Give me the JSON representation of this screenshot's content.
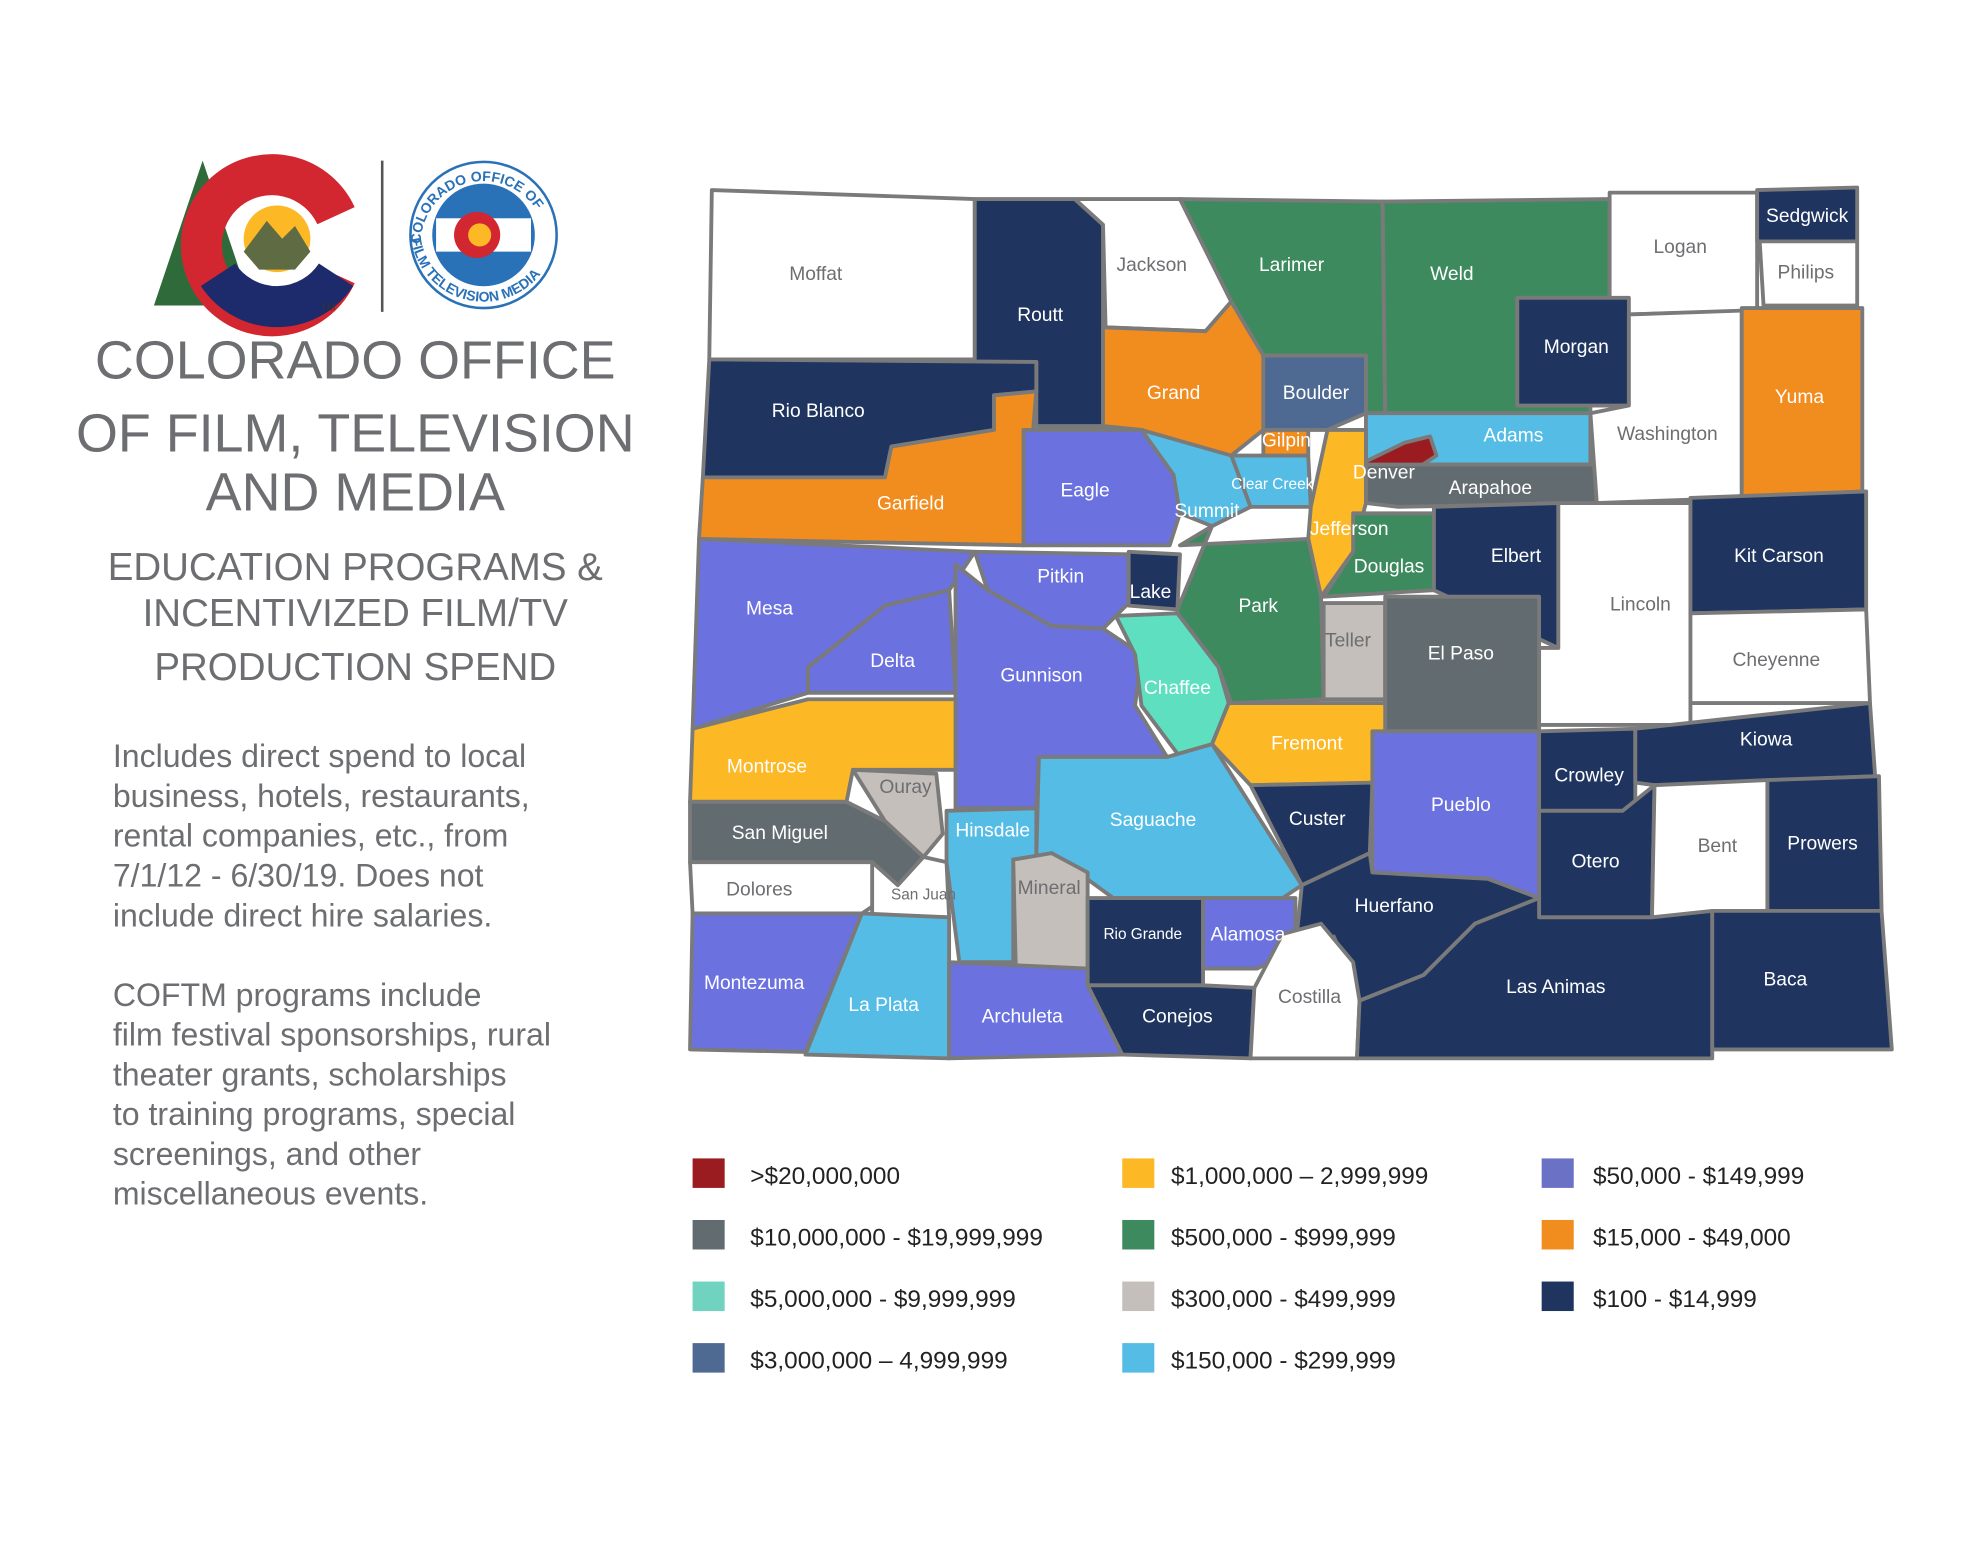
{
  "logo": {
    "badge_top": "COLORADO OFFICE OF",
    "badge_bottom": "FILM TELEVISION MEDIA",
    "trademark": "TM"
  },
  "header": {
    "title_lines": [
      "COLORADO OFFICE",
      "OF FILM, TELEVISION",
      "AND MEDIA"
    ],
    "subtitle_lines": [
      "EDUCATION PROGRAMS &",
      "INCENTIVIZED FILM/TV",
      "PRODUCTION SPEND"
    ]
  },
  "description": [
    [
      "Includes direct spend to local",
      "business, hotels, restaurants,",
      "rental companies, etc., from",
      "7/1/12 - 6/30/19. Does not",
      "include direct hire salaries."
    ],
    [
      "COFTM programs include",
      "film festival sponsorships, rural",
      "theater grants, scholarships",
      "to training programs, special",
      "screenings, and other",
      "miscellaneous events."
    ]
  ],
  "counties": [
    {
      "name": "Moffat",
      "color": "#ffffff"
    },
    {
      "name": "Routt",
      "color": "#1f3560"
    },
    {
      "name": "Jackson",
      "color": "#ffffff"
    },
    {
      "name": "Larimer",
      "color": "#3e8a5f"
    },
    {
      "name": "Weld",
      "color": "#3e8a5f"
    },
    {
      "name": "Logan",
      "color": "#ffffff"
    },
    {
      "name": "Sedgwick",
      "color": "#1f3560"
    },
    {
      "name": "Philips",
      "color": "#ffffff"
    },
    {
      "name": "Morgan",
      "color": "#1f3560"
    },
    {
      "name": "Rio Blanco",
      "color": "#1f3560"
    },
    {
      "name": "Garfield",
      "color": "#f18c1e"
    },
    {
      "name": "Grand",
      "color": "#f18c1e"
    },
    {
      "name": "Boulder",
      "color": "#4e6a93"
    },
    {
      "name": "Gilpin",
      "color": "#f18c1e"
    },
    {
      "name": "Clear Creek",
      "color": "#55bde5"
    },
    {
      "name": "Adams",
      "color": "#55bde5"
    },
    {
      "name": "Denver",
      "color": "#9b1c20"
    },
    {
      "name": "Arapahoe",
      "color": "#626c70"
    },
    {
      "name": "Washington",
      "color": "#ffffff"
    },
    {
      "name": "Yuma",
      "color": "#f18c1e"
    },
    {
      "name": "Eagle",
      "color": "#6b72e0"
    },
    {
      "name": "Summit",
      "color": "#55bde5"
    },
    {
      "name": "Jefferson",
      "color": "#fdb825"
    },
    {
      "name": "Douglas",
      "color": "#3e8a5f"
    },
    {
      "name": "Elbert",
      "color": "#1f3560"
    },
    {
      "name": "Lincoln",
      "color": "#ffffff"
    },
    {
      "name": "Kit Carson",
      "color": "#1f3560"
    },
    {
      "name": "Cheyenne",
      "color": "#ffffff"
    },
    {
      "name": "Mesa",
      "color": "#6b72e0"
    },
    {
      "name": "Delta",
      "color": "#6b72e0"
    },
    {
      "name": "Pitkin",
      "color": "#6b72e0"
    },
    {
      "name": "Lake",
      "color": "#1f3560"
    },
    {
      "name": "Park",
      "color": "#3e8a5f"
    },
    {
      "name": "Teller",
      "color": "#c4bfba"
    },
    {
      "name": "El Paso",
      "color": "#626c70"
    },
    {
      "name": "Gunnison",
      "color": "#6b72e0"
    },
    {
      "name": "Chaffee",
      "color": "#5ee0c0"
    },
    {
      "name": "Fremont",
      "color": "#fdb825"
    },
    {
      "name": "Montrose",
      "color": "#fdb825"
    },
    {
      "name": "Ouray",
      "color": "#c4bfba"
    },
    {
      "name": "San Miguel",
      "color": "#626c70"
    },
    {
      "name": "Dolores",
      "color": "#ffffff"
    },
    {
      "name": "San Juan",
      "color": "#ffffff"
    },
    {
      "name": "Hinsdale",
      "color": "#55bde5"
    },
    {
      "name": "Saguache",
      "color": "#55bde5"
    },
    {
      "name": "Custer",
      "color": "#1f3560"
    },
    {
      "name": "Pueblo",
      "color": "#6b72e0"
    },
    {
      "name": "Crowley",
      "color": "#1f3560"
    },
    {
      "name": "Kiowa",
      "color": "#1f3560"
    },
    {
      "name": "Otero",
      "color": "#1f3560"
    },
    {
      "name": "Bent",
      "color": "#ffffff"
    },
    {
      "name": "Prowers",
      "color": "#1f3560"
    },
    {
      "name": "Mineral",
      "color": "#c4bfba"
    },
    {
      "name": "Rio Grande",
      "color": "#1f3560"
    },
    {
      "name": "Alamosa",
      "color": "#6b72e0"
    },
    {
      "name": "Huerfano",
      "color": "#1f3560"
    },
    {
      "name": "Montezuma",
      "color": "#6b72e0"
    },
    {
      "name": "La Plata",
      "color": "#55bde5"
    },
    {
      "name": "Archuleta",
      "color": "#6b72e0"
    },
    {
      "name": "Conejos",
      "color": "#1f3560"
    },
    {
      "name": "Costilla",
      "color": "#ffffff"
    },
    {
      "name": "Las Animas",
      "color": "#1f3560"
    },
    {
      "name": "Baca",
      "color": "#1f3560"
    }
  ],
  "legend": [
    {
      "label": ">$20,000,000",
      "color": "#9b1c20"
    },
    {
      "label": "$10,000,000 - $19,999,999",
      "color": "#626c70"
    },
    {
      "label": "$5,000,000 - $9,999,999",
      "color": "#70d3bf"
    },
    {
      "label": "$3,000,000 – 4,999,999",
      "color": "#4e6a93"
    },
    {
      "label": "$1,000,000 – 2,999,999",
      "color": "#fdb825"
    },
    {
      "label": "$500,000 - $999,999",
      "color": "#3e8a5f"
    },
    {
      "label": "$300,000 - $499,999",
      "color": "#c4bfba"
    },
    {
      "label": "$150,000 - $299,999",
      "color": "#55bde5"
    },
    {
      "label": "$50,000 - $149,999",
      "color": "#6b72c6"
    },
    {
      "label": "$15,000 - $49,000",
      "color": "#f18c1e"
    },
    {
      "label": "$100 - $14,999",
      "color": "#1f3560"
    }
  ]
}
